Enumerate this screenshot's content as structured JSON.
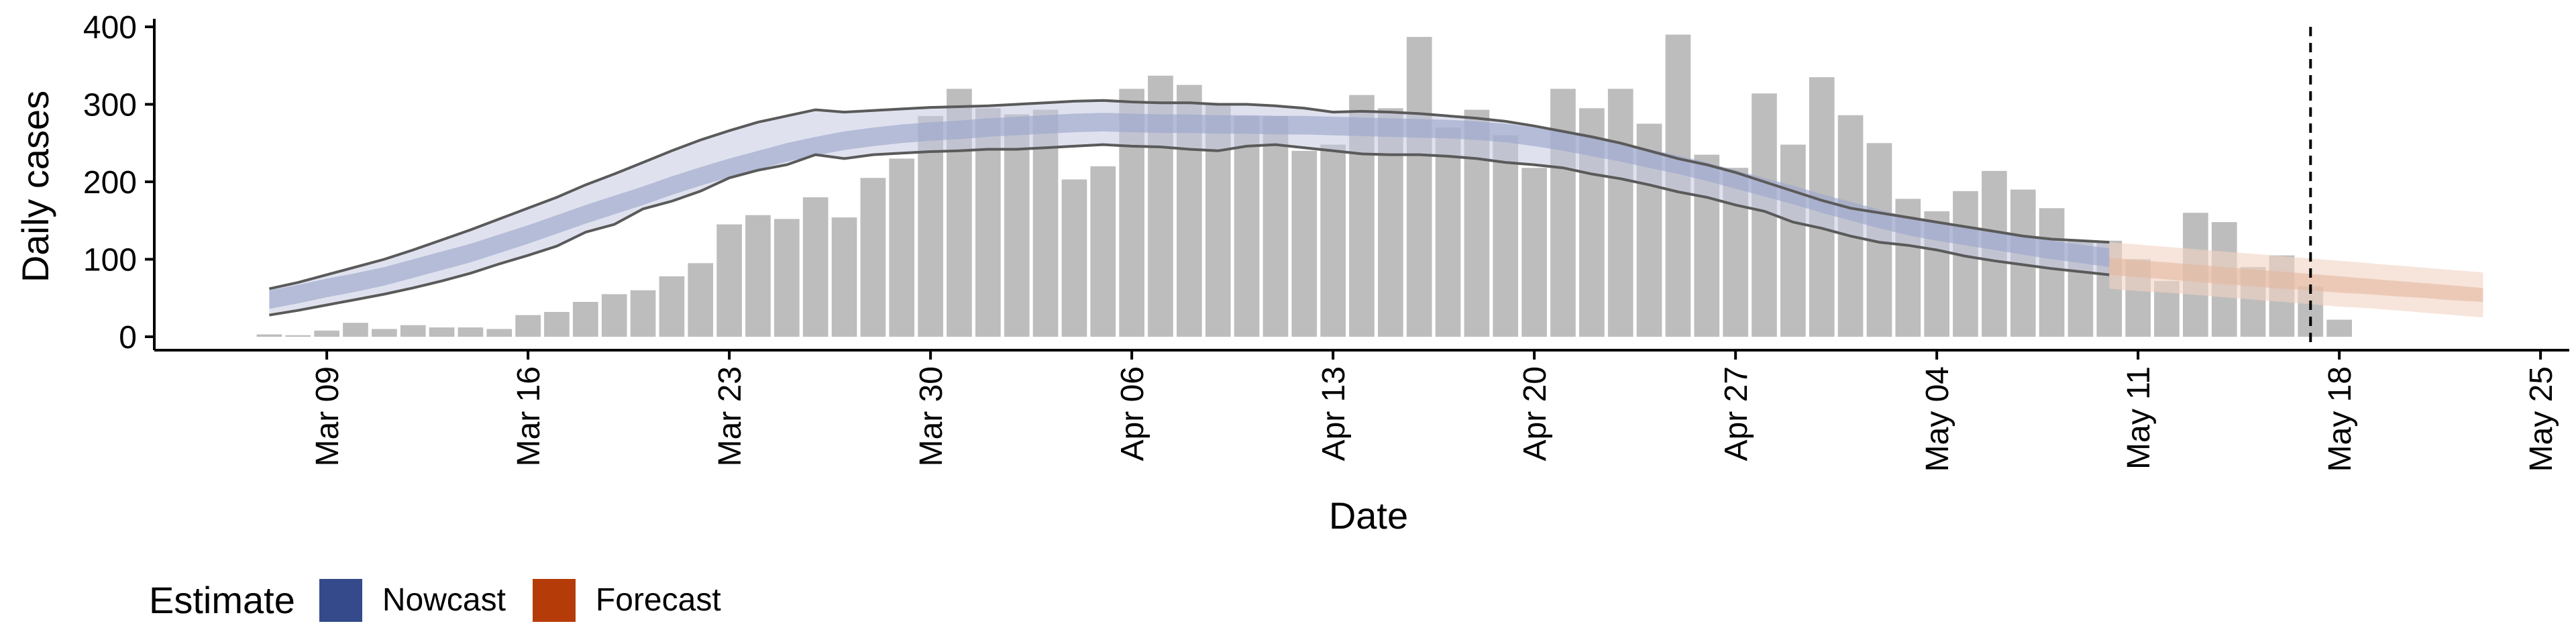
{
  "chart_data": {
    "type": "bar",
    "xlabel": "Date",
    "ylabel": "Daily cases",
    "ylim": [
      0,
      400
    ],
    "yticks": [
      0,
      100,
      200,
      300,
      400
    ],
    "xticks": [
      "Mar 09",
      "Mar 16",
      "Mar 23",
      "Mar 30",
      "Apr 06",
      "Apr 13",
      "Apr 20",
      "Apr 27",
      "May 04",
      "May 11",
      "May 18",
      "May 25"
    ],
    "x_start_date": "2020-03-03",
    "x_end_date": "2020-05-26",
    "bar_dates_start": "2020-03-07",
    "reported_cases": [
      3,
      2,
      8,
      18,
      10,
      15,
      12,
      12,
      10,
      28,
      32,
      45,
      55,
      60,
      78,
      95,
      145,
      157,
      152,
      180,
      154,
      205,
      230,
      285,
      320,
      295,
      287,
      293,
      203,
      220,
      320,
      337,
      325,
      300,
      285,
      285,
      240,
      248,
      312,
      295,
      387,
      270,
      293,
      260,
      218,
      320,
      295,
      320,
      275,
      390,
      235,
      218,
      314,
      248,
      335,
      286,
      250,
      178,
      162,
      188,
      214,
      190,
      166,
      124,
      124,
      100,
      72,
      160,
      148,
      90,
      105,
      65,
      22
    ],
    "nowcast": {
      "dates_start": "2020-03-07",
      "median": [
        48,
        55,
        63,
        70,
        78,
        88,
        98,
        108,
        120,
        132,
        145,
        158,
        170,
        182,
        195,
        207,
        218,
        228,
        238,
        246,
        253,
        258,
        262,
        265,
        267,
        270,
        272,
        274,
        276,
        277,
        276,
        275,
        275,
        274,
        274,
        273,
        273,
        272,
        271,
        270,
        269,
        268,
        266,
        263,
        258,
        252,
        245,
        238,
        230,
        222,
        213,
        203,
        193,
        183,
        172,
        162,
        152,
        143,
        136,
        130,
        124,
        118,
        112,
        107,
        102
      ],
      "lower90": [
        28,
        34,
        41,
        48,
        55,
        63,
        72,
        82,
        94,
        105,
        117,
        135,
        145,
        165,
        175,
        188,
        205,
        215,
        222,
        235,
        230,
        235,
        237,
        239,
        240,
        242,
        242,
        244,
        246,
        248,
        246,
        245,
        242,
        240,
        246,
        248,
        244,
        240,
        236,
        235,
        235,
        233,
        230,
        225,
        222,
        218,
        210,
        204,
        196,
        187,
        180,
        170,
        162,
        148,
        140,
        130,
        122,
        118,
        112,
        104,
        98,
        93,
        88,
        84,
        80
      ],
      "upper90": [
        62,
        70,
        80,
        90,
        100,
        112,
        125,
        138,
        152,
        166,
        180,
        196,
        210,
        225,
        240,
        254,
        266,
        277,
        285,
        293,
        290,
        292,
        294,
        296,
        297,
        298,
        300,
        302,
        304,
        305,
        303,
        302,
        302,
        300,
        300,
        298,
        295,
        290,
        291,
        290,
        288,
        285,
        282,
        278,
        272,
        265,
        258,
        250,
        240,
        230,
        222,
        212,
        200,
        188,
        176,
        166,
        160,
        154,
        148,
        142,
        136,
        130,
        126,
        124,
        122
      ]
    },
    "forecast": {
      "dates_start": "2020-05-10",
      "median": [
        92,
        89,
        85,
        82,
        79,
        76,
        73,
        70,
        67,
        64,
        61,
        58,
        55,
        52
      ],
      "lower50": [
        80,
        77,
        74,
        71,
        68,
        65,
        62,
        60,
        57,
        55,
        52,
        50,
        47,
        45
      ],
      "upper50": [
        102,
        99,
        96,
        93,
        90,
        87,
        84,
        81,
        78,
        75,
        72,
        69,
        66,
        63
      ],
      "lower90": [
        62,
        59,
        57,
        54,
        51,
        48,
        45,
        42,
        39,
        37,
        34,
        31,
        28,
        25
      ],
      "upper90": [
        122,
        119,
        116,
        113,
        110,
        107,
        104,
        101,
        98,
        95,
        92,
        89,
        86,
        83
      ]
    },
    "vline_date": "2020-05-17",
    "legend": {
      "title": "Estimate",
      "items": [
        {
          "label": "Nowcast",
          "color": "#344a8a"
        },
        {
          "label": "Forecast",
          "color": "#b53c08"
        }
      ]
    },
    "colors": {
      "bar": "#bdbdbd",
      "nowcast_band": "#c5cbe0",
      "nowcast_inner": "#9ea8cc",
      "nowcast_line": "#5a5a5a",
      "forecast_band": "#f1d2c2",
      "forecast_inner": "#e5b7a0"
    }
  }
}
